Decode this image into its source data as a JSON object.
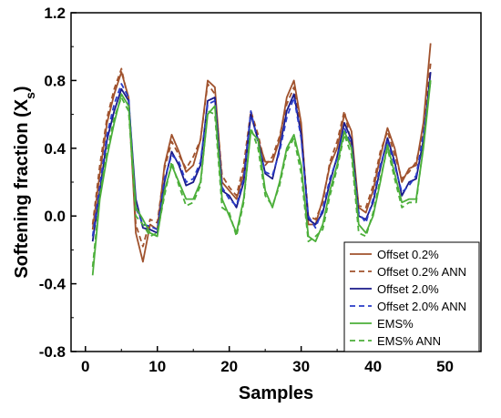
{
  "chart_data": {
    "type": "line",
    "title": "",
    "xlabel": "Samples",
    "ylabel_main": "Softening fraction (X",
    "ylabel_sub": "s",
    "ylabel_close": ")",
    "xlim": [
      -2,
      55
    ],
    "ylim": [
      -0.8,
      1.2
    ],
    "xticks": [
      0,
      10,
      20,
      30,
      40,
      50
    ],
    "yticks": [
      -0.8,
      -0.4,
      0.0,
      0.4,
      0.8,
      1.2
    ],
    "ytick_labels": [
      "-0.8",
      "-0.4",
      "0.0",
      "0.4",
      "0.8",
      "1.2"
    ],
    "xtick_labels": [
      "0",
      "10",
      "20",
      "30",
      "40",
      "50"
    ],
    "grid": false,
    "legend_position": "bottom-right",
    "x": [
      1,
      2,
      3,
      4,
      5,
      6,
      7,
      8,
      9,
      10,
      11,
      12,
      13,
      14,
      15,
      16,
      17,
      18,
      19,
      20,
      21,
      22,
      23,
      24,
      25,
      26,
      27,
      28,
      29,
      30,
      31,
      32,
      33,
      34,
      35,
      36,
      37,
      38,
      39,
      40,
      41,
      42,
      43,
      44,
      45,
      46,
      47,
      48
    ],
    "series": [
      {
        "name": "Offset 0.2%",
        "color": "#a0522d",
        "dash": false,
        "values": [
          -0.08,
          0.25,
          0.55,
          0.72,
          0.85,
          0.7,
          -0.1,
          -0.27,
          -0.05,
          -0.08,
          0.3,
          0.48,
          0.38,
          0.26,
          0.3,
          0.45,
          0.8,
          0.76,
          0.2,
          0.15,
          0.1,
          0.25,
          0.6,
          0.45,
          0.32,
          0.32,
          0.45,
          0.7,
          0.8,
          0.55,
          -0.05,
          -0.05,
          0.1,
          0.3,
          0.4,
          0.6,
          0.5,
          0.05,
          0.02,
          0.15,
          0.35,
          0.52,
          0.4,
          0.2,
          0.28,
          0.3,
          0.55,
          1.02
        ]
      },
      {
        "name": "Offset 0.2% ANN",
        "color": "#a0522d",
        "dash": true,
        "values": [
          -0.05,
          0.3,
          0.58,
          0.75,
          0.87,
          0.68,
          -0.05,
          -0.18,
          -0.02,
          -0.04,
          0.28,
          0.44,
          0.36,
          0.28,
          0.35,
          0.45,
          0.78,
          0.72,
          0.24,
          0.17,
          0.12,
          0.3,
          0.62,
          0.48,
          0.3,
          0.35,
          0.47,
          0.66,
          0.76,
          0.52,
          0.0,
          -0.02,
          0.08,
          0.32,
          0.44,
          0.62,
          0.42,
          0.06,
          0.05,
          0.18,
          0.38,
          0.5,
          0.36,
          0.22,
          0.26,
          0.32,
          0.5,
          0.9
        ]
      },
      {
        "name": "Offset 2.0%",
        "color": "#1a1a8a",
        "dash": false,
        "values": [
          -0.15,
          0.15,
          0.45,
          0.62,
          0.75,
          0.68,
          0.1,
          -0.07,
          -0.08,
          -0.1,
          0.2,
          0.38,
          0.3,
          0.18,
          0.2,
          0.3,
          0.68,
          0.7,
          0.15,
          0.12,
          0.05,
          0.2,
          0.6,
          0.45,
          0.25,
          0.22,
          0.4,
          0.62,
          0.72,
          0.48,
          -0.02,
          -0.05,
          0.02,
          0.2,
          0.35,
          0.55,
          0.45,
          0.0,
          -0.02,
          0.08,
          0.28,
          0.46,
          0.32,
          0.12,
          0.2,
          0.22,
          0.45,
          0.85
        ]
      },
      {
        "name": "Offset 2.0% ANN",
        "color": "#2a3cc8",
        "dash": true,
        "values": [
          -0.12,
          0.18,
          0.48,
          0.66,
          0.78,
          0.7,
          0.05,
          -0.05,
          -0.06,
          -0.08,
          0.22,
          0.36,
          0.32,
          0.2,
          0.22,
          0.32,
          0.66,
          0.68,
          0.17,
          0.1,
          0.06,
          0.22,
          0.62,
          0.43,
          0.26,
          0.24,
          0.38,
          0.58,
          0.7,
          0.46,
          0.0,
          -0.07,
          0.04,
          0.22,
          0.34,
          0.52,
          0.42,
          0.02,
          -0.04,
          0.1,
          0.3,
          0.44,
          0.3,
          0.14,
          0.18,
          0.24,
          0.48,
          0.8
        ]
      },
      {
        "name": "EMS%",
        "color": "#4caf3a",
        "dash": false,
        "values": [
          -0.35,
          0.1,
          0.35,
          0.55,
          0.72,
          0.65,
          0.05,
          -0.02,
          -0.1,
          -0.12,
          0.15,
          0.3,
          0.2,
          0.1,
          0.1,
          0.2,
          0.6,
          0.65,
          0.1,
          0.0,
          -0.1,
          0.1,
          0.5,
          0.45,
          0.15,
          0.05,
          0.2,
          0.4,
          0.48,
          0.3,
          -0.12,
          -0.15,
          -0.05,
          0.15,
          0.3,
          0.5,
          0.4,
          -0.05,
          -0.1,
          0.0,
          0.2,
          0.42,
          0.25,
          0.08,
          0.1,
          0.1,
          0.4,
          0.8
        ]
      },
      {
        "name": "EMS% ANN",
        "color": "#4caf3a",
        "dash": true,
        "values": [
          -0.3,
          0.12,
          0.38,
          0.58,
          0.7,
          0.62,
          0.0,
          -0.05,
          -0.12,
          -0.1,
          0.12,
          0.32,
          0.18,
          0.06,
          0.08,
          0.18,
          0.62,
          0.6,
          0.05,
          0.02,
          -0.12,
          0.08,
          0.52,
          0.4,
          0.12,
          0.06,
          0.18,
          0.38,
          0.46,
          0.25,
          -0.15,
          -0.12,
          -0.08,
          0.12,
          0.28,
          0.48,
          0.36,
          -0.1,
          -0.12,
          0.02,
          0.22,
          0.4,
          0.22,
          0.05,
          0.08,
          0.08,
          0.42,
          0.82
        ]
      }
    ]
  }
}
